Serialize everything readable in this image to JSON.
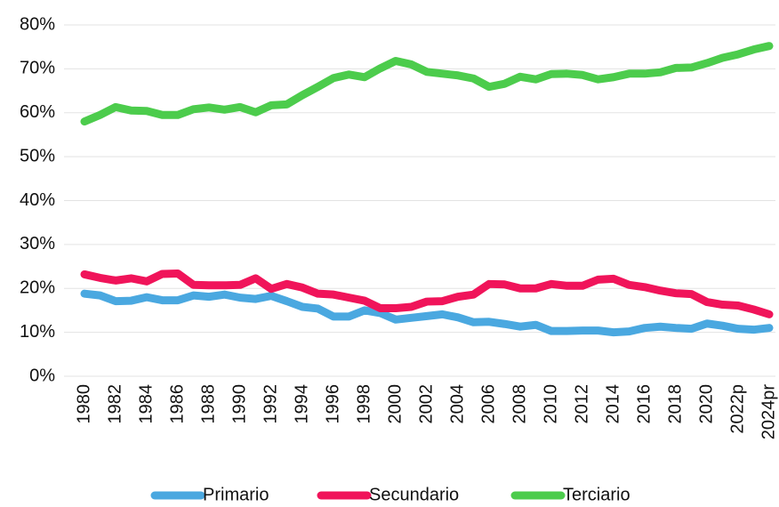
{
  "chart_data": {
    "type": "line",
    "categories": [
      "1980",
      null,
      "1982",
      null,
      "1984",
      null,
      "1986",
      null,
      "1988",
      null,
      "1990",
      null,
      "1992",
      null,
      "1994",
      null,
      "1996",
      null,
      "1998",
      null,
      "2000",
      null,
      "2002",
      null,
      "2004",
      null,
      "2006",
      null,
      "2008",
      null,
      "2010",
      null,
      "2012",
      null,
      "2014",
      null,
      "2016",
      null,
      "2018",
      null,
      "2020",
      null,
      "2022p",
      null,
      "2024pr"
    ],
    "series": [
      {
        "name": "Primario",
        "color": "#4aa8e0",
        "values": [
          18.8,
          18.4,
          17.1,
          17.2,
          18.0,
          17.3,
          17.3,
          18.4,
          18.1,
          18.6,
          17.9,
          17.6,
          18.3,
          17.1,
          15.8,
          15.4,
          13.6,
          13.6,
          15.0,
          14.4,
          12.9,
          13.3,
          13.7,
          14.1,
          13.4,
          12.3,
          12.4,
          11.9,
          11.3,
          11.7,
          10.3,
          10.3,
          10.4,
          10.4,
          10.0,
          10.2,
          11.0,
          11.3,
          11.0,
          10.8,
          12.0,
          11.5,
          10.8,
          10.6,
          11.0
        ]
      },
      {
        "name": "Secundario",
        "color": "#f0145a",
        "values": [
          23.2,
          22.4,
          21.8,
          22.3,
          21.6,
          23.3,
          23.4,
          20.8,
          20.7,
          20.7,
          20.8,
          22.3,
          19.9,
          21.0,
          20.2,
          18.8,
          18.6,
          17.9,
          17.2,
          15.5,
          15.5,
          15.8,
          17.0,
          17.1,
          18.1,
          18.6,
          21.0,
          20.9,
          20.0,
          20.0,
          21.0,
          20.6,
          20.6,
          22.0,
          22.2,
          20.8,
          20.3,
          19.5,
          18.9,
          18.7,
          16.9,
          16.3,
          16.1,
          15.2,
          14.1
        ]
      },
      {
        "name": "Terciario",
        "color": "#4ccc4c",
        "values": [
          58.0,
          59.5,
          61.3,
          60.5,
          60.4,
          59.5,
          59.5,
          60.8,
          61.2,
          60.7,
          61.3,
          60.1,
          61.7,
          61.9,
          64.0,
          65.9,
          67.9,
          68.7,
          68.1,
          70.1,
          71.8,
          71.0,
          69.3,
          68.9,
          68.5,
          67.8,
          65.9,
          66.6,
          68.2,
          67.6,
          68.8,
          68.9,
          68.6,
          67.6,
          68.1,
          68.9,
          68.9,
          69.2,
          70.2,
          70.3,
          71.3,
          72.5,
          73.3,
          74.4,
          75.2
        ]
      }
    ],
    "ylim": [
      0,
      80
    ],
    "yticks": [
      {
        "value": 0,
        "label": "0%"
      },
      {
        "value": 10,
        "label": "10%"
      },
      {
        "value": 20,
        "label": "20%"
      },
      {
        "value": 30,
        "label": "30%"
      },
      {
        "value": 40,
        "label": "40%"
      },
      {
        "value": 50,
        "label": "50%"
      },
      {
        "value": 60,
        "label": "60%"
      },
      {
        "value": 70,
        "label": "70%"
      },
      {
        "value": 80,
        "label": "80%"
      }
    ],
    "grid": true,
    "legend": "bottom"
  }
}
